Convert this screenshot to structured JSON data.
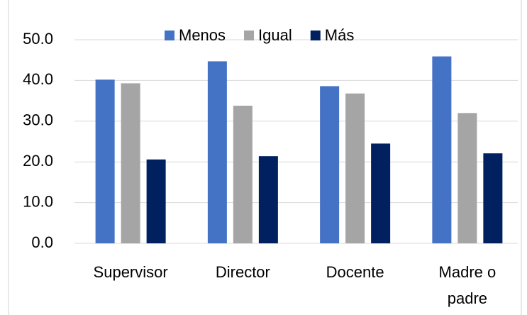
{
  "chart_data": {
    "type": "bar",
    "categories": [
      "Supervisor",
      "Director",
      "Docente",
      "Madre o padre"
    ],
    "series": [
      {
        "name": "Menos",
        "color": "#4472c4",
        "values": [
          40.2,
          44.7,
          38.6,
          45.9
        ]
      },
      {
        "name": "Igual",
        "color": "#a5a5a5",
        "values": [
          39.3,
          33.8,
          36.8,
          32.0
        ]
      },
      {
        "name": "Más",
        "color": "#002060",
        "values": [
          20.6,
          21.4,
          24.5,
          22.1
        ]
      }
    ],
    "ylim": [
      0,
      50
    ],
    "yticks": [
      {
        "value": 0,
        "label": "0.0"
      },
      {
        "value": 10,
        "label": "10.0"
      },
      {
        "value": 20,
        "label": "20.0"
      },
      {
        "value": 30,
        "label": "30.0"
      },
      {
        "value": 40,
        "label": "40.0"
      },
      {
        "value": 50,
        "label": "50.0"
      }
    ],
    "grid": true,
    "legend": "top"
  }
}
